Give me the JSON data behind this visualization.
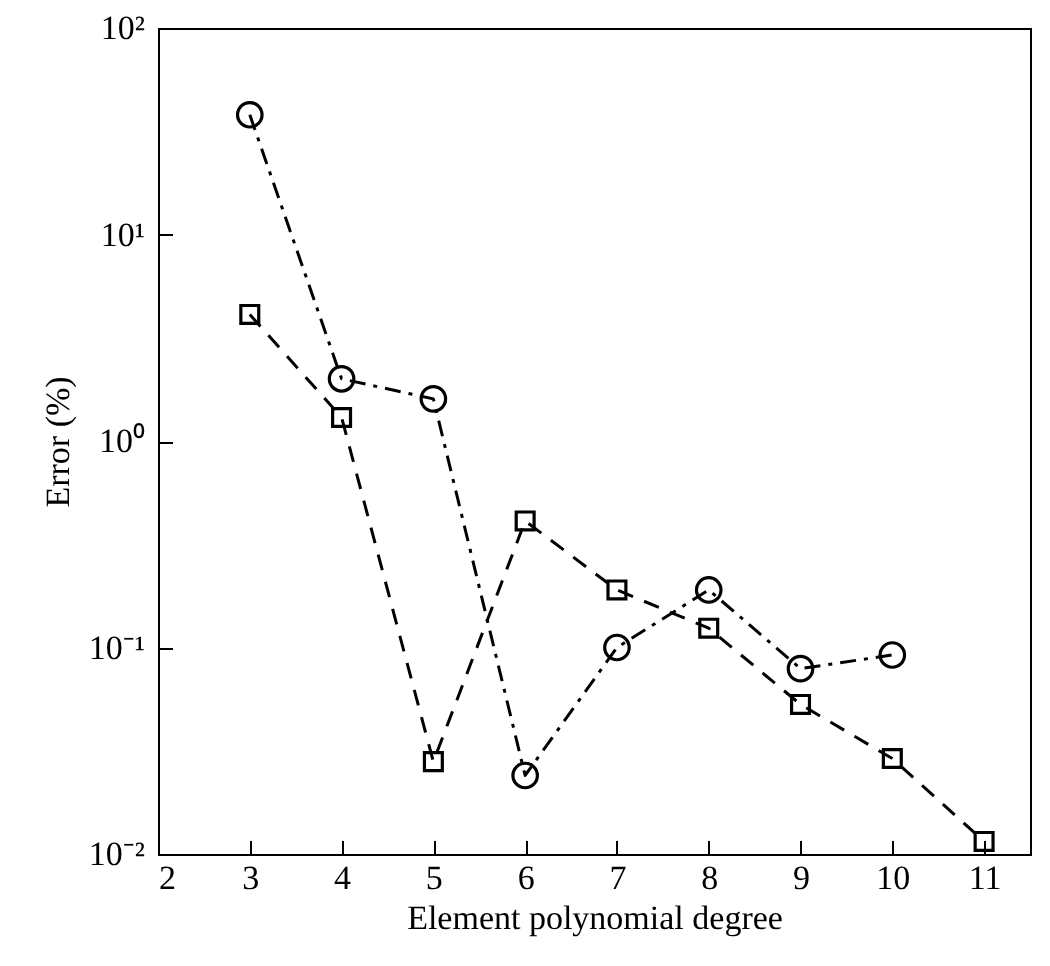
{
  "chart_data": {
    "type": "line",
    "xlabel": "Element polynomial degree",
    "ylabel": "Error (%)",
    "log": "y",
    "grid": false,
    "xlim": [
      2,
      11.5
    ],
    "xticks": [
      2,
      3,
      4,
      5,
      6,
      7,
      8,
      9,
      10,
      11
    ],
    "ylim": [
      0.01,
      100
    ],
    "yticks": [
      {
        "value": 0.01,
        "label": "10⁻²"
      },
      {
        "value": 0.1,
        "label": "10⁻¹"
      },
      {
        "value": 1,
        "label": "10⁰"
      },
      {
        "value": 10,
        "label": "10¹"
      },
      {
        "value": 100,
        "label": "10²"
      }
    ],
    "series": [
      {
        "color": "#000000",
        "marker": "circle",
        "line_style": "dashdot",
        "x": [
          3,
          4,
          5,
          6,
          7,
          8,
          9,
          10
        ],
        "values": [
          38,
          2.0,
          1.6,
          0.024,
          0.1,
          0.19,
          0.079,
          0.092
        ]
      },
      {
        "color": "#000000",
        "marker": "square",
        "line_style": "dashed",
        "x": [
          3,
          4,
          5,
          6,
          7,
          8,
          9,
          10,
          11
        ],
        "values": [
          4.1,
          1.3,
          0.028,
          0.41,
          0.19,
          0.124,
          0.053,
          0.029,
          0.0115
        ]
      }
    ]
  }
}
